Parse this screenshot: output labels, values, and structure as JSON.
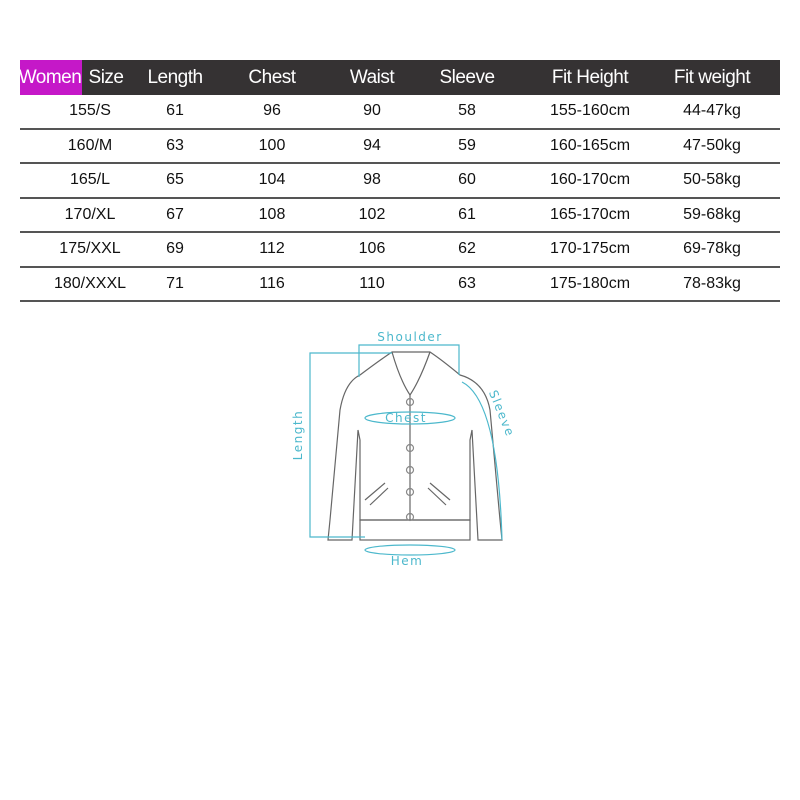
{
  "table": {
    "header": {
      "women_label": "Women",
      "columns": [
        "Size",
        "Length",
        "Chest",
        "Waist",
        "Sleeve",
        "Fit Height",
        "Fit weight"
      ]
    },
    "rows": [
      [
        "155/S",
        "61",
        "96",
        "90",
        "58",
        "155-160cm",
        "44-47kg"
      ],
      [
        "160/M",
        "63",
        "100",
        "94",
        "59",
        "160-165cm",
        "47-50kg"
      ],
      [
        "165/L",
        "65",
        "104",
        "98",
        "60",
        "160-170cm",
        "50-58kg"
      ],
      [
        "170/XL",
        "67",
        "108",
        "102",
        "61",
        "165-170cm",
        "59-68kg"
      ],
      [
        "175/XXL",
        "69",
        "112",
        "106",
        "62",
        "170-175cm",
        "69-78kg"
      ],
      [
        "180/XXXL",
        "71",
        "116",
        "110",
        "63",
        "175-180cm",
        "78-83kg"
      ]
    ]
  },
  "diagram": {
    "shoulder": "Shoulder",
    "chest": "Chest",
    "length": "Length",
    "sleeve": "Sleeve",
    "hem": "Hem"
  },
  "colors": {
    "header_bg": "#353233",
    "women_accent": "#c518c8",
    "measure_line": "#4cb8cc"
  }
}
